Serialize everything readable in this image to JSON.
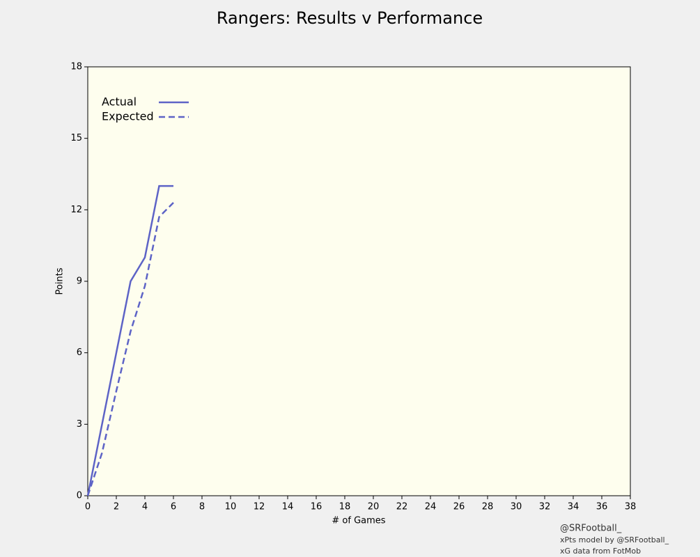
{
  "chart_data": {
    "type": "line",
    "title": "Rangers: Results v Performance",
    "x_label": "# of Games",
    "y_label": "Points",
    "x": [
      0,
      1,
      2,
      3,
      4,
      5,
      6
    ],
    "series": [
      {
        "name": "Actual",
        "color": "#5d63c6",
        "linestyle": "solid",
        "values": [
          0,
          3,
          6,
          9,
          10,
          13,
          13
        ]
      },
      {
        "name": "Expected",
        "color": "#5d63c6",
        "linestyle": "dashed",
        "values": [
          0,
          1.8,
          4.4,
          6.9,
          8.8,
          11.7,
          12.3
        ]
      }
    ],
    "xlim": [
      0,
      38
    ],
    "xticks": [
      0,
      2,
      4,
      6,
      8,
      10,
      12,
      14,
      16,
      18,
      20,
      22,
      24,
      26,
      28,
      30,
      32,
      34,
      36,
      38
    ],
    "ylim": [
      0,
      18
    ],
    "yticks": [
      0,
      3,
      6,
      9,
      12,
      15,
      18
    ],
    "grid": false,
    "legend": "upper left",
    "annotations": [
      "@SRFootball_",
      "xPts model by @SRFootball_",
      "xG data from FotMob"
    ]
  }
}
